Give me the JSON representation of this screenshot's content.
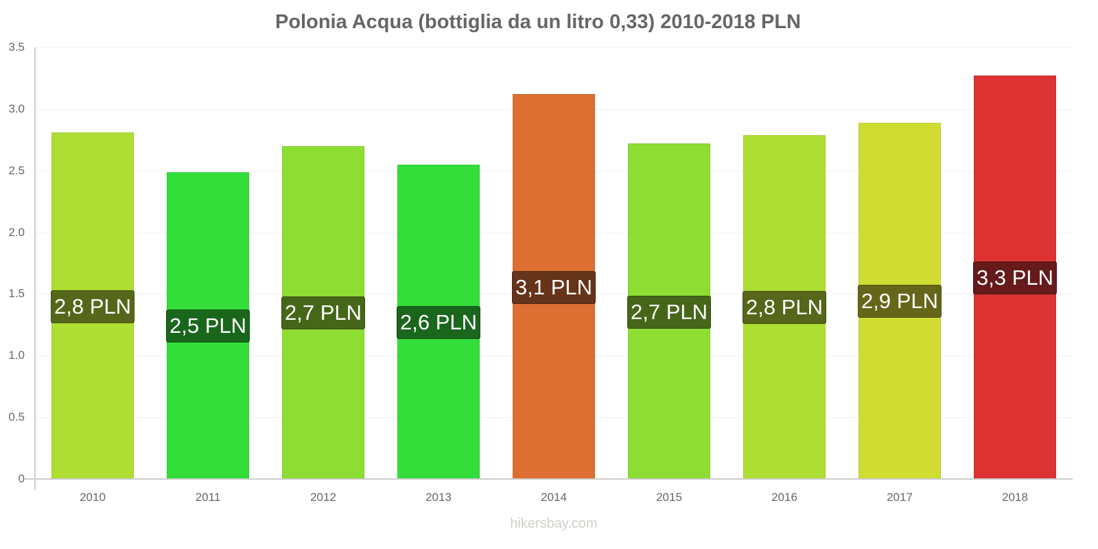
{
  "chart_data": {
    "type": "bar",
    "title": "Polonia Acqua (bottiglia da un litro 0,33) 2010-2018 PLN",
    "xlabel": "",
    "ylabel": "",
    "ylim": [
      0,
      3.5
    ],
    "yticks": [
      "0",
      "0.5",
      "1.0",
      "1.5",
      "2.0",
      "2.5",
      "3.0",
      "3.5"
    ],
    "grid": true,
    "legend": null,
    "categories": [
      "2010",
      "2011",
      "2012",
      "2013",
      "2014",
      "2015",
      "2016",
      "2017",
      "2018"
    ],
    "values": [
      2.81,
      2.49,
      2.7,
      2.55,
      3.12,
      2.72,
      2.79,
      2.89,
      3.27
    ],
    "data_labels": [
      "2,8 PLN",
      "2,5 PLN",
      "2,7 PLN",
      "2,6 PLN",
      "3,1 PLN",
      "2,7 PLN",
      "2,8 PLN",
      "2,9 PLN",
      "3,3 PLN"
    ],
    "bar_colors": [
      "#aedd33",
      "#33dd3a",
      "#8ddd33",
      "#33dd3a",
      "#dd6f33",
      "#8ddd33",
      "#aedd33",
      "#cfdd33",
      "#dd3333"
    ],
    "label_colors": [
      "#56661a",
      "#1a661d",
      "#46661a",
      "#1a661d",
      "#66341a",
      "#46661a",
      "#56661a",
      "#66661a",
      "#661a1a"
    ]
  },
  "footer": "hikersbay.com"
}
